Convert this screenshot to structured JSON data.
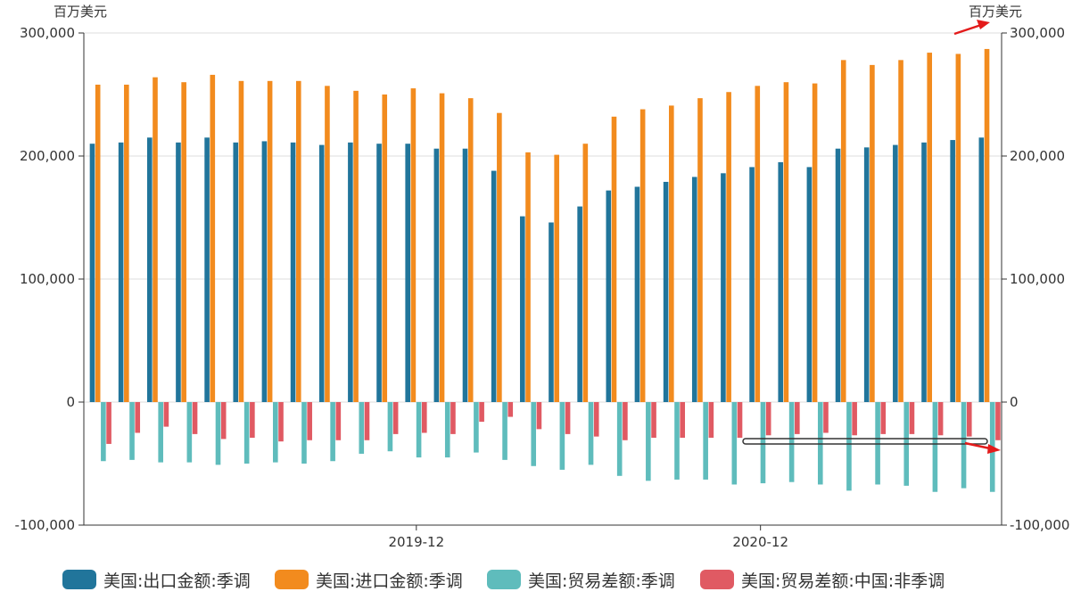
{
  "chart_data": {
    "type": "bar",
    "unit_left": "百万美元",
    "unit_right": "百万美元",
    "ylim": [
      -100000,
      300000
    ],
    "y_ticks": [
      {
        "value": 300000,
        "label": "300,000"
      },
      {
        "value": 200000,
        "label": "200,000"
      },
      {
        "value": 100000,
        "label": "100,000"
      },
      {
        "value": 0,
        "label": "0"
      },
      {
        "value": -100000,
        "label": "-100,000"
      }
    ],
    "x_labels": [
      {
        "index": 11,
        "label": "2019-12"
      },
      {
        "index": 23,
        "label": "2020-12"
      }
    ],
    "grid": "horizontal",
    "legend_position": "bottom",
    "series": [
      {
        "name": "美国:出口金额:季调",
        "color": "#21759b",
        "values": [
          210000,
          211000,
          215000,
          211000,
          215000,
          211000,
          212000,
          211000,
          209000,
          211000,
          210000,
          210000,
          206000,
          206000,
          188000,
          151000,
          146000,
          159000,
          172000,
          175000,
          179000,
          183000,
          186000,
          191000,
          195000,
          191000,
          206000,
          207000,
          209000,
          211000,
          213000,
          215000
        ]
      },
      {
        "name": "美国:进口金额:季调",
        "color": "#f28b1e",
        "values": [
          258000,
          258000,
          264000,
          260000,
          266000,
          261000,
          261000,
          261000,
          257000,
          253000,
          250000,
          255000,
          251000,
          247000,
          235000,
          203000,
          201000,
          210000,
          232000,
          238000,
          241000,
          247000,
          252000,
          257000,
          260000,
          259000,
          278000,
          274000,
          278000,
          284000,
          283000,
          287000
        ]
      },
      {
        "name": "美国:贸易差额:季调",
        "color": "#5fbcbc",
        "values": [
          -48000,
          -47000,
          -49000,
          -49000,
          -51000,
          -50000,
          -49000,
          -50000,
          -48000,
          -42000,
          -40000,
          -45000,
          -45000,
          -41000,
          -47000,
          -52000,
          -55000,
          -51000,
          -60000,
          -64000,
          -63000,
          -63000,
          -67000,
          -66000,
          -65000,
          -67000,
          -72000,
          -67000,
          -68000,
          -73000,
          -70000,
          -73000
        ]
      },
      {
        "name": "美国:贸易差额:中国:非季调",
        "color": "#e05a63",
        "values": [
          -34000,
          -25000,
          -20000,
          -26000,
          -30000,
          -29000,
          -32000,
          -31000,
          -31000,
          -31000,
          -26000,
          -25000,
          -26000,
          -16000,
          -12000,
          -22000,
          -26000,
          -28000,
          -31000,
          -29000,
          -29000,
          -29000,
          -29000,
          -27000,
          -26000,
          -25000,
          -27000,
          -26000,
          -26000,
          -27000,
          -28000,
          -31000
        ]
      }
    ]
  }
}
